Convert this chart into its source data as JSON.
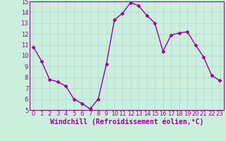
{
  "x": [
    0,
    1,
    2,
    3,
    4,
    5,
    6,
    7,
    8,
    9,
    10,
    11,
    12,
    13,
    14,
    15,
    16,
    17,
    18,
    19,
    20,
    21,
    22,
    23
  ],
  "y": [
    10.8,
    9.5,
    7.8,
    7.6,
    7.2,
    6.0,
    5.6,
    5.1,
    6.0,
    9.2,
    13.3,
    13.9,
    14.9,
    14.6,
    13.7,
    13.0,
    10.4,
    11.9,
    12.1,
    12.2,
    11.0,
    9.9,
    8.2,
    7.7
  ],
  "line_color": "#990099",
  "marker": "D",
  "marker_size": 2.5,
  "line_width": 1.0,
  "xlabel": "Windchill (Refroidissement éolien,°C)",
  "xlabel_fontsize": 7.0,
  "ylim": [
    5,
    15
  ],
  "xlim_min": -0.5,
  "xlim_max": 23.5,
  "yticks": [
    5,
    6,
    7,
    8,
    9,
    10,
    11,
    12,
    13,
    14,
    15
  ],
  "xticks": [
    0,
    1,
    2,
    3,
    4,
    5,
    6,
    7,
    8,
    9,
    10,
    11,
    12,
    13,
    14,
    15,
    16,
    17,
    18,
    19,
    20,
    21,
    22,
    23
  ],
  "grid_color": "#b0ddd8",
  "bg_color": "#cceedd",
  "tick_fontsize": 6.0,
  "line_color_purple": "#880088"
}
